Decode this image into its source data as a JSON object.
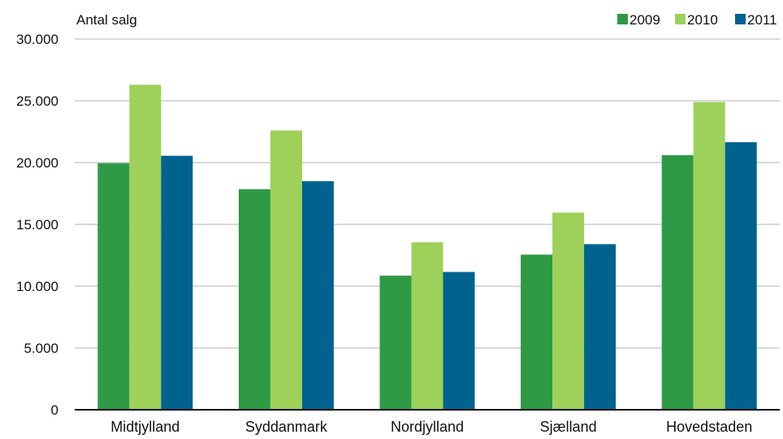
{
  "chart_data": {
    "type": "bar",
    "title": "",
    "xlabel": "",
    "ylabel": "Antal salg",
    "categories": [
      "Midtjylland",
      "Syddanmark",
      "Nordjylland",
      "Sjælland",
      "Hovedstaden"
    ],
    "series": [
      {
        "name": "2009",
        "color": "#2e9a46",
        "values": [
          19950,
          17850,
          10850,
          12550,
          20600
        ]
      },
      {
        "name": "2010",
        "color": "#9dd15a",
        "values": [
          26300,
          22600,
          13550,
          15950,
          24900
        ]
      },
      {
        "name": "2011",
        "color": "#00628f",
        "values": [
          20550,
          18500,
          11150,
          13400,
          21650
        ]
      }
    ],
    "ylim": [
      0,
      30000
    ],
    "yticks": [
      0,
      5000,
      10000,
      15000,
      20000,
      25000,
      30000
    ],
    "ytick_labels": [
      "0",
      "5.000",
      "10.000",
      "15.000",
      "20.000",
      "25.000",
      "30.000"
    ],
    "grid": true,
    "legend_position": "top-right"
  }
}
